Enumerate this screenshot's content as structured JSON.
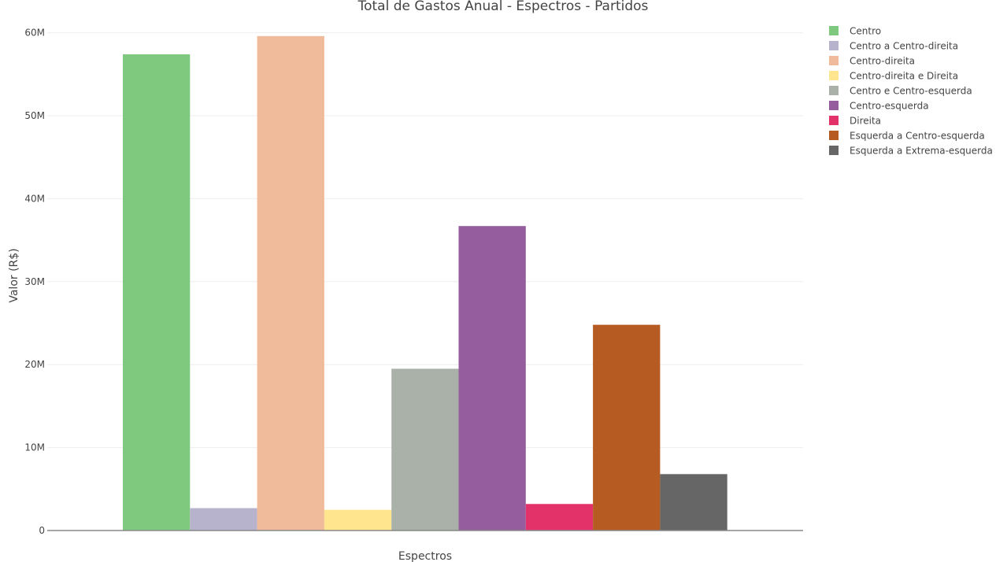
{
  "chart_data": {
    "type": "bar",
    "title": "Total de Gastos Anual - Espectros - Partidos",
    "xlabel": "Espectros",
    "ylabel": "Valor (R$)",
    "ylim": [
      0,
      63000000
    ],
    "yticks": [
      0,
      10000000,
      20000000,
      30000000,
      40000000,
      50000000,
      60000000
    ],
    "ytick_labels": [
      "0",
      "10M",
      "20M",
      "30M",
      "40M",
      "50M",
      "60M"
    ],
    "grid": true,
    "legend_position": "right",
    "series": [
      {
        "name": "Centro",
        "value": 57400000,
        "color": "#7fc97f"
      },
      {
        "name": "Centro a Centro-direita",
        "value": 2700000,
        "color": "#b8b3cc"
      },
      {
        "name": "Centro-direita",
        "value": 59600000,
        "color": "#f0bb9b"
      },
      {
        "name": "Centro-direita e Direita",
        "value": 2500000,
        "color": "#ffe68e"
      },
      {
        "name": "Centro e Centro-esquerda",
        "value": 19500000,
        "color": "#aab1a9"
      },
      {
        "name": "Centro-esquerda",
        "value": 36700000,
        "color": "#955d9e"
      },
      {
        "name": "Direita",
        "value": 3200000,
        "color": "#e3326a"
      },
      {
        "name": "Esquerda a Centro-esquerda",
        "value": 24800000,
        "color": "#b65c22"
      },
      {
        "name": "Esquerda a Extrema-esquerda",
        "value": 6800000,
        "color": "#666666"
      }
    ]
  }
}
